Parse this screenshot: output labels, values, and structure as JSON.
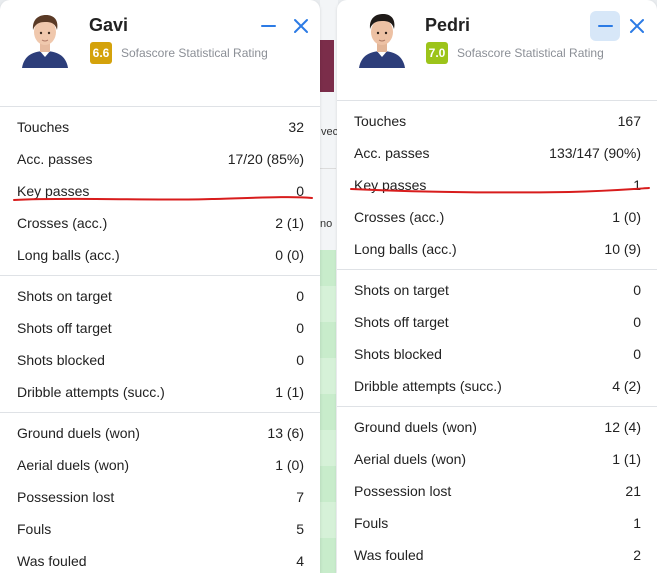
{
  "colors": {
    "accent": "#2c7be5",
    "rating_left": "#d4a20b",
    "rating_right": "#9cc41a",
    "underline": "#d81c1c"
  },
  "background": {
    "text1": "vecl",
    "text2": "no"
  },
  "players": [
    {
      "name": "Gavi",
      "rating": "6.6",
      "rating_label": "Sofascore Statistical Rating",
      "groups": [
        [
          {
            "label": "Touches",
            "value": "32"
          },
          {
            "label": "Acc. passes",
            "value": "17/20 (85%)"
          },
          {
            "label": "Key passes",
            "value": "0"
          },
          {
            "label": "Crosses (acc.)",
            "value": "2 (1)"
          },
          {
            "label": "Long balls (acc.)",
            "value": "0 (0)"
          }
        ],
        [
          {
            "label": "Shots on target",
            "value": "0"
          },
          {
            "label": "Shots off target",
            "value": "0"
          },
          {
            "label": "Shots blocked",
            "value": "0"
          },
          {
            "label": "Dribble attempts (succ.)",
            "value": "1 (1)"
          }
        ],
        [
          {
            "label": "Ground duels (won)",
            "value": "13 (6)"
          },
          {
            "label": "Aerial duels (won)",
            "value": "1 (0)"
          },
          {
            "label": "Possession lost",
            "value": "7"
          },
          {
            "label": "Fouls",
            "value": "5"
          },
          {
            "label": "Was fouled",
            "value": "4"
          }
        ]
      ]
    },
    {
      "name": "Pedri",
      "rating": "7.0",
      "rating_label": "Sofascore Statistical Rating",
      "groups": [
        [
          {
            "label": "Touches",
            "value": "167"
          },
          {
            "label": "Acc. passes",
            "value": "133/147 (90%)"
          },
          {
            "label": "Key passes",
            "value": "1"
          },
          {
            "label": "Crosses (acc.)",
            "value": "1 (0)"
          },
          {
            "label": "Long balls (acc.)",
            "value": "10 (9)"
          }
        ],
        [
          {
            "label": "Shots on target",
            "value": "0"
          },
          {
            "label": "Shots off target",
            "value": "0"
          },
          {
            "label": "Shots blocked",
            "value": "0"
          },
          {
            "label": "Dribble attempts (succ.)",
            "value": "4 (2)"
          }
        ],
        [
          {
            "label": "Ground duels (won)",
            "value": "12 (4)"
          },
          {
            "label": "Aerial duels (won)",
            "value": "1 (1)"
          },
          {
            "label": "Possession lost",
            "value": "21"
          },
          {
            "label": "Fouls",
            "value": "1"
          },
          {
            "label": "Was fouled",
            "value": "2"
          }
        ]
      ]
    }
  ]
}
